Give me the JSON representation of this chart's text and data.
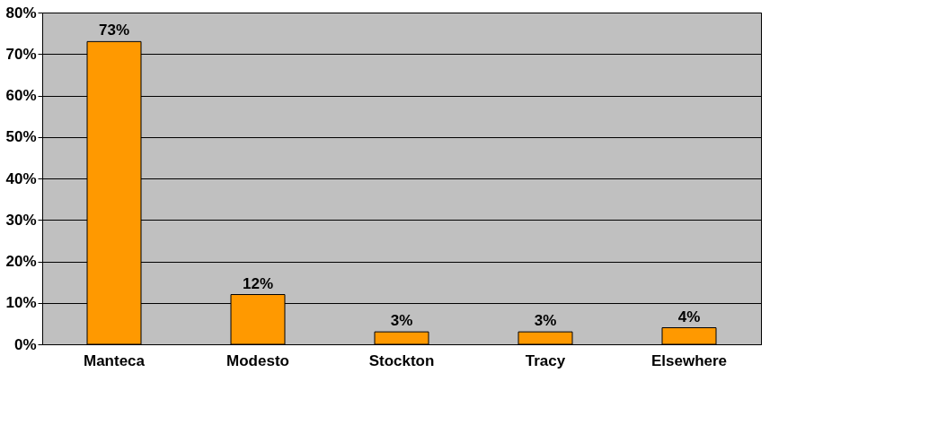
{
  "chart_data": {
    "type": "bar",
    "categories": [
      "Manteca",
      "Modesto",
      "Stockton",
      "Tracy",
      "Elsewhere"
    ],
    "values": [
      73,
      12,
      3,
      3,
      4
    ],
    "value_labels": [
      "73%",
      "12%",
      "3%",
      "3%",
      "4%"
    ],
    "color": "#ff9900",
    "ylim": [
      0,
      80
    ],
    "yticks": [
      {
        "value": 0,
        "label": "0%"
      },
      {
        "value": 10,
        "label": "10%"
      },
      {
        "value": 20,
        "label": "20%"
      },
      {
        "value": 30,
        "label": "30%"
      },
      {
        "value": 40,
        "label": "40%"
      },
      {
        "value": 50,
        "label": "50%"
      },
      {
        "value": 60,
        "label": "60%"
      },
      {
        "value": 70,
        "label": "70%"
      },
      {
        "value": 80,
        "label": "80%"
      }
    ],
    "grid": "y"
  }
}
